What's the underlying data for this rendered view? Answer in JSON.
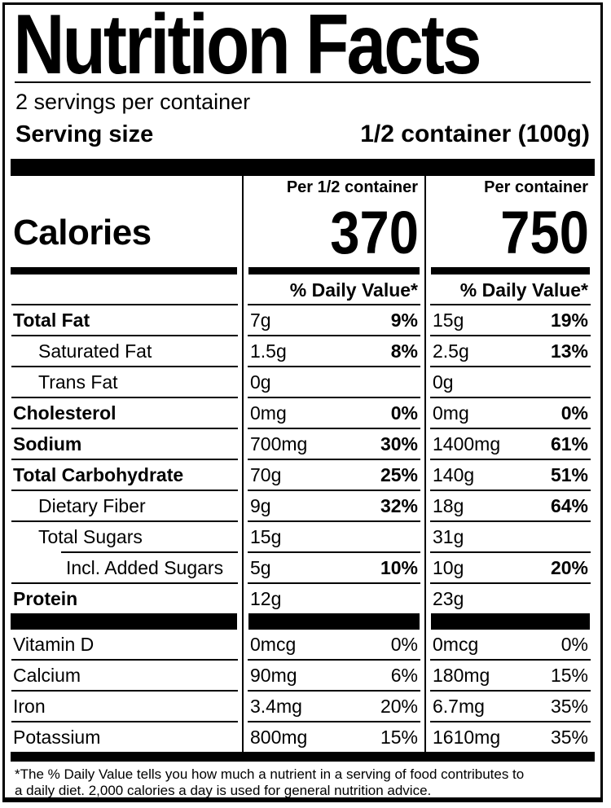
{
  "title": "Nutrition Facts",
  "serving": {
    "servings_per_container": "2 servings per container",
    "size_label": "Serving size",
    "size_value": "1/2 container (100g)"
  },
  "columns": {
    "per_half_header": "Per 1/2 container",
    "per_container_header": "Per container"
  },
  "calories": {
    "label": "Calories",
    "per_half": "370",
    "per_container": "750"
  },
  "daily_value_header": "% Daily Value*",
  "nutrients": [
    {
      "name": "Total Fat",
      "amt1": "7g",
      "dv1": "9%",
      "amt2": "15g",
      "dv2": "19%"
    },
    {
      "name": "Saturated Fat",
      "amt1": "1.5g",
      "dv1": "8%",
      "amt2": "2.5g",
      "dv2": "13%"
    },
    {
      "name": "Trans Fat",
      "amt1": "0g",
      "dv1": "",
      "amt2": "0g",
      "dv2": ""
    },
    {
      "name": "Cholesterol",
      "amt1": "0mg",
      "dv1": "0%",
      "amt2": "0mg",
      "dv2": "0%"
    },
    {
      "name": "Sodium",
      "amt1": "700mg",
      "dv1": "30%",
      "amt2": "1400mg",
      "dv2": "61%"
    },
    {
      "name": "Total Carbohydrate",
      "amt1": "70g",
      "dv1": "25%",
      "amt2": "140g",
      "dv2": "51%"
    },
    {
      "name": "Dietary Fiber",
      "amt1": "9g",
      "dv1": "32%",
      "amt2": "18g",
      "dv2": "64%"
    },
    {
      "name": "Total Sugars",
      "amt1": "15g",
      "dv1": "",
      "amt2": "31g",
      "dv2": ""
    },
    {
      "name": "Incl. Added Sugars",
      "amt1": "5g",
      "dv1": "10%",
      "amt2": "10g",
      "dv2": "20%"
    },
    {
      "name": "Protein",
      "amt1": "12g",
      "dv1": "",
      "amt2": "23g",
      "dv2": ""
    }
  ],
  "vitamins": [
    {
      "name": "Vitamin D",
      "amt1": "0mcg",
      "dv1": "0%",
      "amt2": "0mcg",
      "dv2": "0%"
    },
    {
      "name": "Calcium",
      "amt1": "90mg",
      "dv1": "6%",
      "amt2": "180mg",
      "dv2": "15%"
    },
    {
      "name": "Iron",
      "amt1": "3.4mg",
      "dv1": "20%",
      "amt2": "6.7mg",
      "dv2": "35%"
    },
    {
      "name": "Potassium",
      "amt1": "800mg",
      "dv1": "15%",
      "amt2": "1610mg",
      "dv2": "35%"
    }
  ],
  "footnote": {
    "line1": "*The % Daily Value tells you how much a nutrient in a serving of food contributes to",
    "line2": "a daily diet. 2,000 calories a day is used for general nutrition advice."
  },
  "colors": {
    "ink": "#000000",
    "background": "#ffffff"
  }
}
